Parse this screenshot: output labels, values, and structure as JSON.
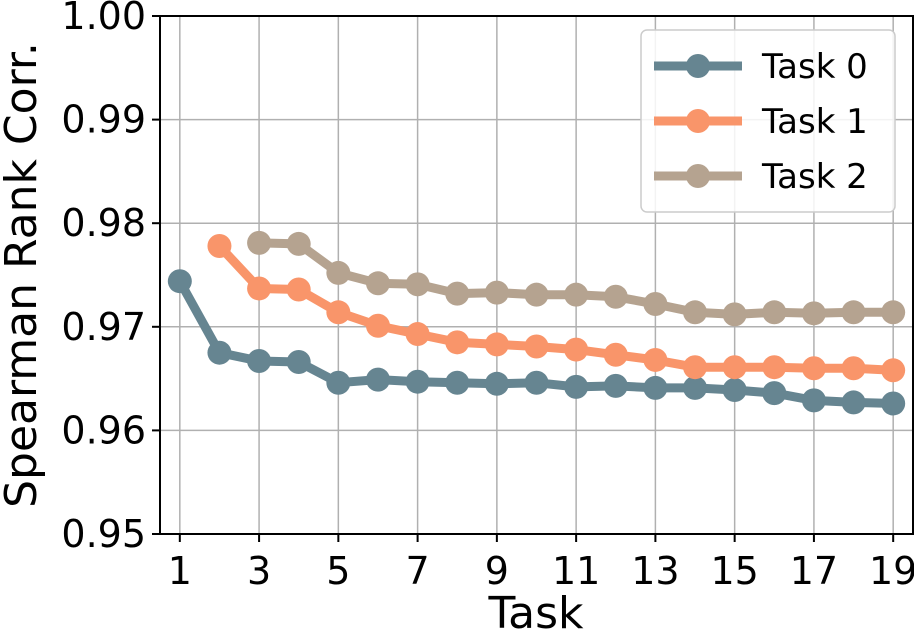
{
  "chart_data": {
    "type": "line",
    "xlabel": "Task",
    "ylabel": "Spearman Rank Corr.",
    "xlim": [
      0.5,
      19.5
    ],
    "ylim": [
      0.95,
      1.0
    ],
    "xticks": [
      1,
      3,
      5,
      7,
      9,
      11,
      13,
      15,
      17,
      19
    ],
    "xtick_labels": [
      "1",
      "3",
      "5",
      "7",
      "9",
      "11",
      "13",
      "15",
      "17",
      "19"
    ],
    "yticks": [
      0.95,
      0.96,
      0.97,
      0.98,
      0.99,
      1.0
    ],
    "ytick_labels": [
      "0.95",
      "0.96",
      "0.97",
      "0.98",
      "0.99",
      "1.00"
    ],
    "grid": true,
    "legend": "top-right",
    "series": [
      {
        "name": "Task 0",
        "color": "#668591",
        "x": [
          1,
          2,
          3,
          4,
          5,
          6,
          7,
          8,
          9,
          10,
          11,
          12,
          13,
          14,
          15,
          16,
          17,
          18,
          19
        ],
        "values": [
          0.9744,
          0.9675,
          0.9667,
          0.9666,
          0.9646,
          0.9649,
          0.9647,
          0.9646,
          0.9645,
          0.9646,
          0.9642,
          0.9643,
          0.9641,
          0.9641,
          0.9639,
          0.9636,
          0.9629,
          0.9627,
          0.9626
        ]
      },
      {
        "name": "Task 1",
        "color": "#f9956a",
        "x": [
          2,
          3,
          4,
          5,
          6,
          7,
          8,
          9,
          10,
          11,
          12,
          13,
          14,
          15,
          16,
          17,
          18,
          19
        ],
        "values": [
          0.9778,
          0.9737,
          0.9736,
          0.9714,
          0.9701,
          0.9693,
          0.9685,
          0.9683,
          0.9681,
          0.9678,
          0.9673,
          0.9668,
          0.9661,
          0.9661,
          0.9661,
          0.966,
          0.966,
          0.9658
        ]
      },
      {
        "name": "Task 2",
        "color": "#b5a390",
        "x": [
          3,
          4,
          5,
          6,
          7,
          8,
          9,
          10,
          11,
          12,
          13,
          14,
          15,
          16,
          17,
          18,
          19
        ],
        "values": [
          0.9781,
          0.978,
          0.9752,
          0.9742,
          0.9741,
          0.9732,
          0.9733,
          0.9731,
          0.9731,
          0.9729,
          0.9722,
          0.9714,
          0.9712,
          0.9714,
          0.9713,
          0.9714,
          0.9714
        ]
      }
    ]
  }
}
